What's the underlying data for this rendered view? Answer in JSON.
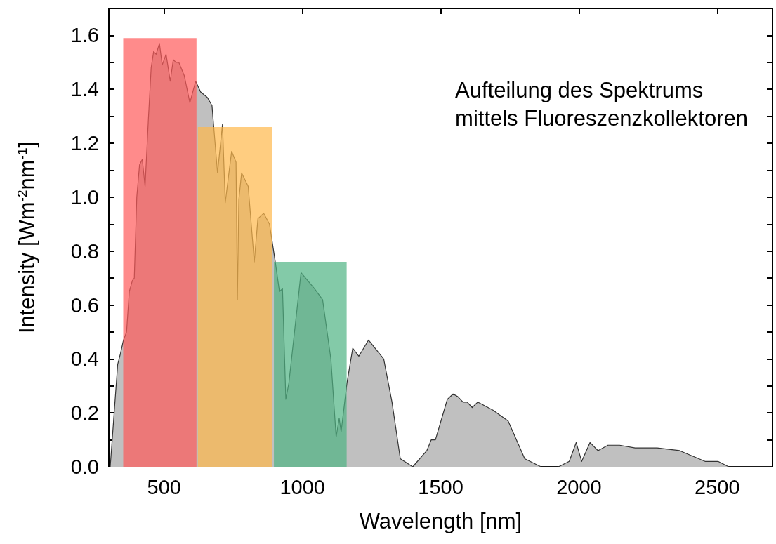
{
  "chart_data": {
    "type": "area",
    "xlabel": "Wavelength [nm]",
    "ylabel": "Intensity [Wm$^{-2}$nm$^{-1}$]",
    "annotations": [
      "Aufteilung des Spektrums\nmittels Fluoreszenzkollektoren"
    ],
    "xlim": [
      300,
      2700
    ],
    "xticks": [
      500,
      1000,
      1500,
      2000,
      2500
    ],
    "ylim": [
      0,
      1.7
    ],
    "yticks": [
      {
        "value": 0,
        "label": "0.0"
      },
      {
        "value": 0.1,
        "label": null
      },
      0.2,
      {
        "value": 0.3,
        "label": null
      },
      0.4,
      {
        "value": 0.5,
        "label": null
      },
      0.6,
      {
        "value": 0.7,
        "label": null
      },
      0.8,
      {
        "value": 0.9,
        "label": null
      },
      {
        "value": 1.0,
        "label": "1.0"
      },
      {
        "value": 1.1,
        "label": null
      },
      1.2,
      {
        "value": 1.3,
        "label": null
      },
      1.4,
      {
        "value": 1.5,
        "label": null
      },
      1.6
    ],
    "grid": false,
    "marker": "none",
    "line_style": "solid",
    "series": [
      {
        "color": "#c0c0c0",
        "x": [
          305,
          332,
          342,
          353,
          364,
          374,
          385,
          392,
          401,
          411,
          421,
          431,
          443,
          453,
          462,
          471,
          483,
          493,
          507,
          522,
          533,
          543,
          553,
          573,
          593,
          614,
          632,
          656,
          673,
          693,
          711,
          721,
          744,
          760,
          765,
          770,
          780,
          804,
          826,
          839,
          860,
          881,
          902,
          917,
          928,
          940,
          951,
          995,
          1044,
          1073,
          1103,
          1122,
          1133,
          1140,
          1161,
          1182,
          1204,
          1239,
          1294,
          1324,
          1354,
          1399,
          1450,
          1466,
          1481,
          1524,
          1545,
          1562,
          1581,
          1596,
          1614,
          1634,
          1689,
          1744,
          1804,
          1863,
          1926,
          1965,
          1990,
          2010,
          2040,
          2069,
          2105,
          2147,
          2203,
          2283,
          2364,
          2456,
          2503,
          2542,
          2700
        ],
        "values": [
          0,
          0.38,
          0.42,
          0.47,
          0.5,
          0.65,
          0.69,
          0.7,
          1.0,
          1.12,
          1.14,
          1.04,
          1.29,
          1.48,
          1.54,
          1.53,
          1.57,
          1.49,
          1.53,
          1.43,
          1.51,
          1.5,
          1.5,
          1.45,
          1.35,
          1.43,
          1.39,
          1.37,
          1.34,
          1.09,
          1.27,
          0.98,
          1.17,
          1.13,
          0.62,
          0.99,
          1.09,
          1.04,
          0.76,
          0.92,
          0.94,
          0.9,
          0.76,
          0.65,
          0.66,
          0.25,
          0.31,
          0.72,
          0.66,
          0.62,
          0.4,
          0.11,
          0.18,
          0.13,
          0.31,
          0.44,
          0.41,
          0.47,
          0.4,
          0.24,
          0.03,
          0,
          0.06,
          0.1,
          0.1,
          0.25,
          0.27,
          0.26,
          0.24,
          0.24,
          0.22,
          0.24,
          0.21,
          0.17,
          0.03,
          0,
          0,
          0.02,
          0.09,
          0.02,
          0.09,
          0.06,
          0.08,
          0.08,
          0.07,
          0.07,
          0.06,
          0.02,
          0.02,
          0,
          0
        ]
      },
      {
        "color": "#ff5a5a",
        "x": [
          352,
          352,
          617,
          617
        ],
        "values": [
          0,
          1.59,
          1.59,
          0
        ]
      },
      {
        "color": "#ffb84a",
        "x": [
          622,
          622,
          890,
          890
        ],
        "values": [
          0,
          1.26,
          1.26,
          0
        ]
      },
      {
        "color": "#4fb483",
        "x": [
          897,
          897,
          1160,
          1160
        ],
        "values": [
          0,
          0.76,
          0.76,
          0
        ]
      }
    ]
  }
}
